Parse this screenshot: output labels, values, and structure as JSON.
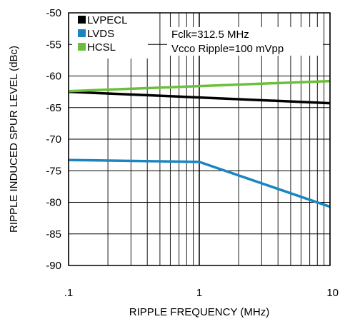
{
  "chart_data": {
    "type": "line",
    "xlabel": "RIPPLE FREQUENCY (MHz)",
    "ylabel": "RIPPLE INDUCED SPUR LEVEL (dBc)",
    "x_scale": "log",
    "xlim": [
      0.1,
      10
    ],
    "ylim": [
      -90,
      -50
    ],
    "x_ticks": [
      0.1,
      1,
      10
    ],
    "x_tick_labels": [
      ".1",
      "1",
      "10"
    ],
    "y_ticks": [
      -90,
      -85,
      -80,
      -75,
      -70,
      -65,
      -60,
      -55,
      -50
    ],
    "y_tick_labels": [
      "-90",
      "-85",
      "-80",
      "-75",
      "-70",
      "-65",
      "-60",
      "-55",
      "-50"
    ],
    "grid": true,
    "legend_position": "top-left",
    "annotations": [
      "Fclk=312.5 MHz",
      "Vcco Ripple=100 mVpp"
    ],
    "series": [
      {
        "name": "LVPECL",
        "color": "#000000",
        "x": [
          0.1,
          10
        ],
        "y": [
          -62.5,
          -64.3
        ]
      },
      {
        "name": "LVDS",
        "color": "#1a85c0",
        "x": [
          0.1,
          1,
          10
        ],
        "y": [
          -73.3,
          -73.6,
          -80.7
        ]
      },
      {
        "name": "HCSL",
        "color": "#6cbf3a",
        "x": [
          0.1,
          10
        ],
        "y": [
          -62.4,
          -60.8
        ]
      }
    ]
  }
}
